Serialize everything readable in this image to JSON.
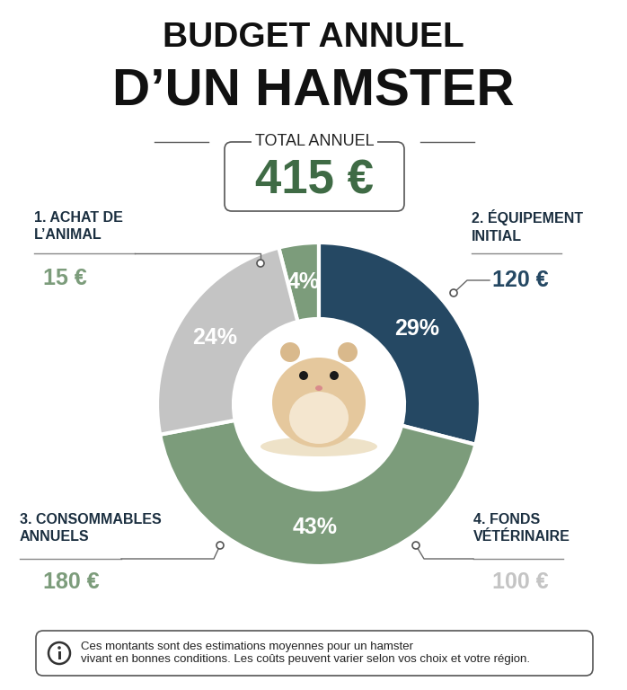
{
  "chart_data": {
    "type": "pie",
    "title": "BUDGET ANNUEL\nD’UN HAMSTER",
    "total": {
      "label": "TOTAL ANNUEL",
      "text": "415 €"
    },
    "categories": [
      "1. ACHAT DE\nL’ANIMAL",
      "2. ÉQUIPEMENT\nINITIAL",
      "3. CONSOMMABLES\nANNUELS",
      "4. FONDS\nVÉTÉRINAIRE"
    ],
    "values": [
      4,
      29,
      43,
      24
    ],
    "value_labels": [
      "4%",
      "29%",
      "43%",
      "24%"
    ],
    "amounts": [
      "15 €",
      "120 €",
      "180 €",
      "100 €"
    ],
    "colors": [
      "#7c9c7b",
      "#254863",
      "#7c9c7b",
      "#c4c4c4"
    ],
    "data_labels": true,
    "note": "Ces montants sont des estimations moyennes pour un hamster\nvivant en bonnes conditions. Les coûts peuvent varier selon vos choix et votre région."
  }
}
